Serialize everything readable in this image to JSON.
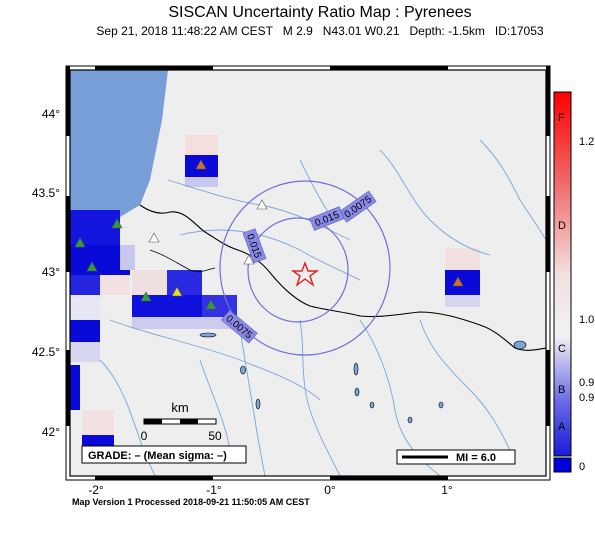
{
  "title": "SISCAN Uncertainty Ratio Map : Pyrenees",
  "subtitle": "Sep 21, 2018 11:48:22 AM CEST   M 2.9   N43.01 W0.21   Depth: -1.5km   ID:17053",
  "footer": "Map Version 1 Processed 2018-09-21 11:50:05 AM CEST",
  "axes": {
    "lat_ticks": [
      "44°",
      "43.5°",
      "43°",
      "42.5°",
      "42°"
    ],
    "lon_ticks": [
      "-2°",
      "-1°",
      "0°",
      "1°"
    ]
  },
  "scale_bar": {
    "unit": "km",
    "labels": [
      "0",
      "50"
    ]
  },
  "grade_box": "GRADE: – (Mean sigma: –)",
  "mi_legend": "MI = 6.0",
  "contours": [
    "0.0075",
    "0.015",
    "0.015",
    "0.0075"
  ],
  "colorbar": {
    "letters": [
      "F",
      "D",
      "C",
      "B",
      "A"
    ],
    "values": [
      "1.2",
      "1.0",
      "0.9",
      "0.9",
      "0"
    ],
    "top_color": "#ff0000",
    "bottom_color": "#0000dd",
    "mid_color": "#f5f5f5"
  },
  "colors": {
    "sea": "#789ed8",
    "land": "#eeeeee",
    "river": "#7aa6da",
    "contour": "#7070d8",
    "epicenter": "#e02020"
  },
  "stations": [
    {
      "color": "#d07020"
    },
    {
      "color": "#2fa030"
    },
    {
      "color": "#2fa030"
    },
    {
      "color": "#2fa030"
    },
    {
      "color": "#e8e020"
    },
    {
      "color": "#2fa030"
    },
    {
      "color": "#2fa030"
    },
    {
      "color": "#d07020"
    },
    {
      "color": "#ffffff"
    },
    {
      "color": "#ffffff"
    },
    {
      "color": "#ffffff"
    }
  ]
}
